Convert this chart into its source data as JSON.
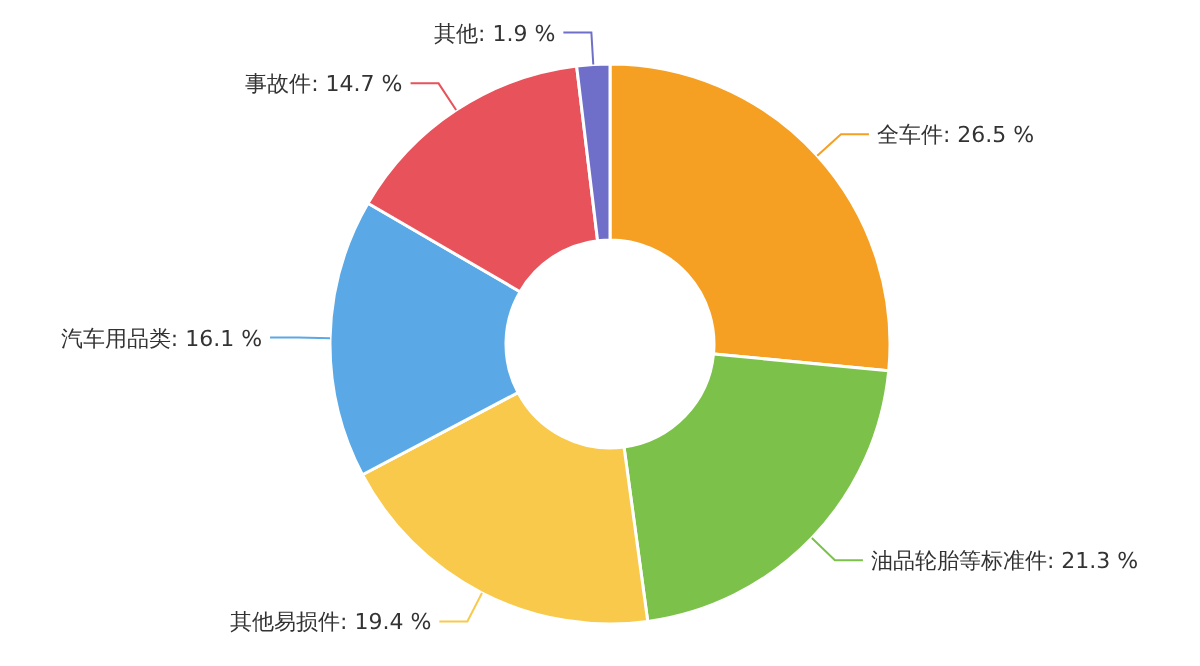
{
  "chart_data": {
    "type": "donut",
    "categories": [
      "全车件",
      "油品轮胎等标准件",
      "其他易损件",
      "汽车用品类",
      "事故件",
      "其他"
    ],
    "values": [
      26.5,
      21.3,
      19.4,
      16.1,
      14.7,
      1.9
    ],
    "value_labels": [
      "26.5 %",
      "21.3 %",
      "19.4 %",
      "16.1 %",
      "14.7 %",
      "1.9 %"
    ],
    "colors": [
      "#f5a023",
      "#7cc24a",
      "#f8c94a",
      "#5aa9e6",
      "#e8525a",
      "#6f6fc9"
    ],
    "legend": false
  }
}
